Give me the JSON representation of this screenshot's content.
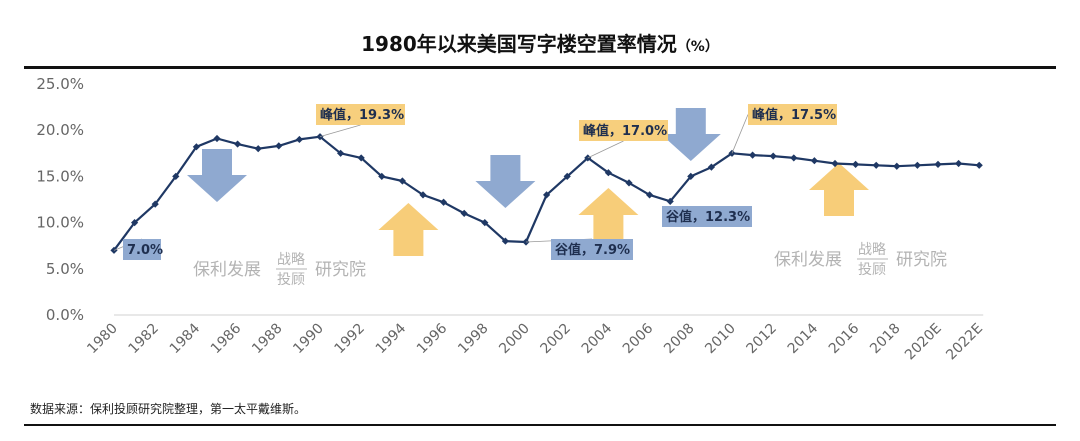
{
  "chart_data": {
    "type": "line",
    "title": "1980年以来美国写字楼空置率情况",
    "title_unit": "（%）",
    "xlabel": "",
    "ylabel": "",
    "ylim": [
      0,
      25
    ],
    "yticks": [
      "0.0%",
      "5.0%",
      "10.0%",
      "15.0%",
      "20.0%",
      "25.0%"
    ],
    "xtick_labels": [
      "1980",
      "1982",
      "1984",
      "1986",
      "1988",
      "1990",
      "1992",
      "1994",
      "1996",
      "1998",
      "2000",
      "2002",
      "2004",
      "2006",
      "2008",
      "2010",
      "2012",
      "2014",
      "2016",
      "2018",
      "2020E",
      "2022E"
    ],
    "categories": [
      "1980",
      "1981",
      "1982",
      "1983",
      "1984",
      "1985",
      "1986",
      "1987",
      "1988",
      "1989",
      "1990",
      "1991",
      "1992",
      "1993",
      "1994",
      "1995",
      "1996",
      "1997",
      "1998",
      "1999",
      "2000",
      "2001",
      "2002",
      "2003",
      "2004",
      "2005",
      "2006",
      "2007",
      "2008",
      "2009",
      "2010",
      "2011",
      "2012",
      "2013",
      "2014",
      "2015",
      "2016",
      "2017",
      "2018",
      "2019",
      "2020E",
      "2021E",
      "2022E"
    ],
    "series": [
      {
        "name": "空置率",
        "color": "#1f3864",
        "values": [
          7.0,
          10.0,
          12.0,
          15.0,
          18.2,
          19.1,
          18.5,
          18.0,
          18.3,
          19.0,
          19.3,
          17.5,
          17.0,
          15.0,
          14.5,
          13.0,
          12.2,
          11.0,
          10.0,
          8.0,
          7.9,
          13.0,
          15.0,
          17.0,
          15.4,
          14.3,
          13.0,
          12.3,
          15.0,
          16.0,
          17.5,
          17.3,
          17.2,
          17.0,
          16.7,
          16.4,
          16.3,
          16.2,
          16.1,
          16.2,
          16.3,
          16.4,
          16.2
        ]
      }
    ],
    "annotations": [
      {
        "text": "7.0%",
        "year": "1980",
        "value": 7.0,
        "style": "blue"
      },
      {
        "text": "峰值，19.3%",
        "year": "1990",
        "value": 19.3,
        "style": "orange"
      },
      {
        "text": "谷值，7.9%",
        "year": "2000",
        "value": 7.9,
        "style": "blue"
      },
      {
        "text": "峰值，17.0%",
        "year": "2003",
        "value": 17.0,
        "style": "orange"
      },
      {
        "text": "谷值，12.3%",
        "year": "2007",
        "value": 12.3,
        "style": "blue"
      },
      {
        "text": "峰值，17.5%",
        "year": "2010",
        "value": 17.5,
        "style": "orange"
      }
    ],
    "arrows": [
      {
        "direction": "down",
        "near_year": "1985"
      },
      {
        "direction": "up",
        "near_year": "1994"
      },
      {
        "direction": "down",
        "near_year": "1999"
      },
      {
        "direction": "up",
        "near_year": "2004"
      },
      {
        "direction": "down",
        "near_year": "2008"
      },
      {
        "direction": "up",
        "near_year": "2015"
      }
    ]
  },
  "watermark": {
    "main": "保利发展",
    "top": "战略",
    "bottom": "投顾",
    "tail": "研究院"
  },
  "source_note": "数据来源：保利投顾研究院整理，第一太平戴维斯。",
  "colors": {
    "line": "#1f3864",
    "blue_box": "#8fa9d0",
    "orange_box": "#f7cf7d",
    "down_arrow": "#8fa9d0",
    "up_arrow": "#f7cd79"
  }
}
